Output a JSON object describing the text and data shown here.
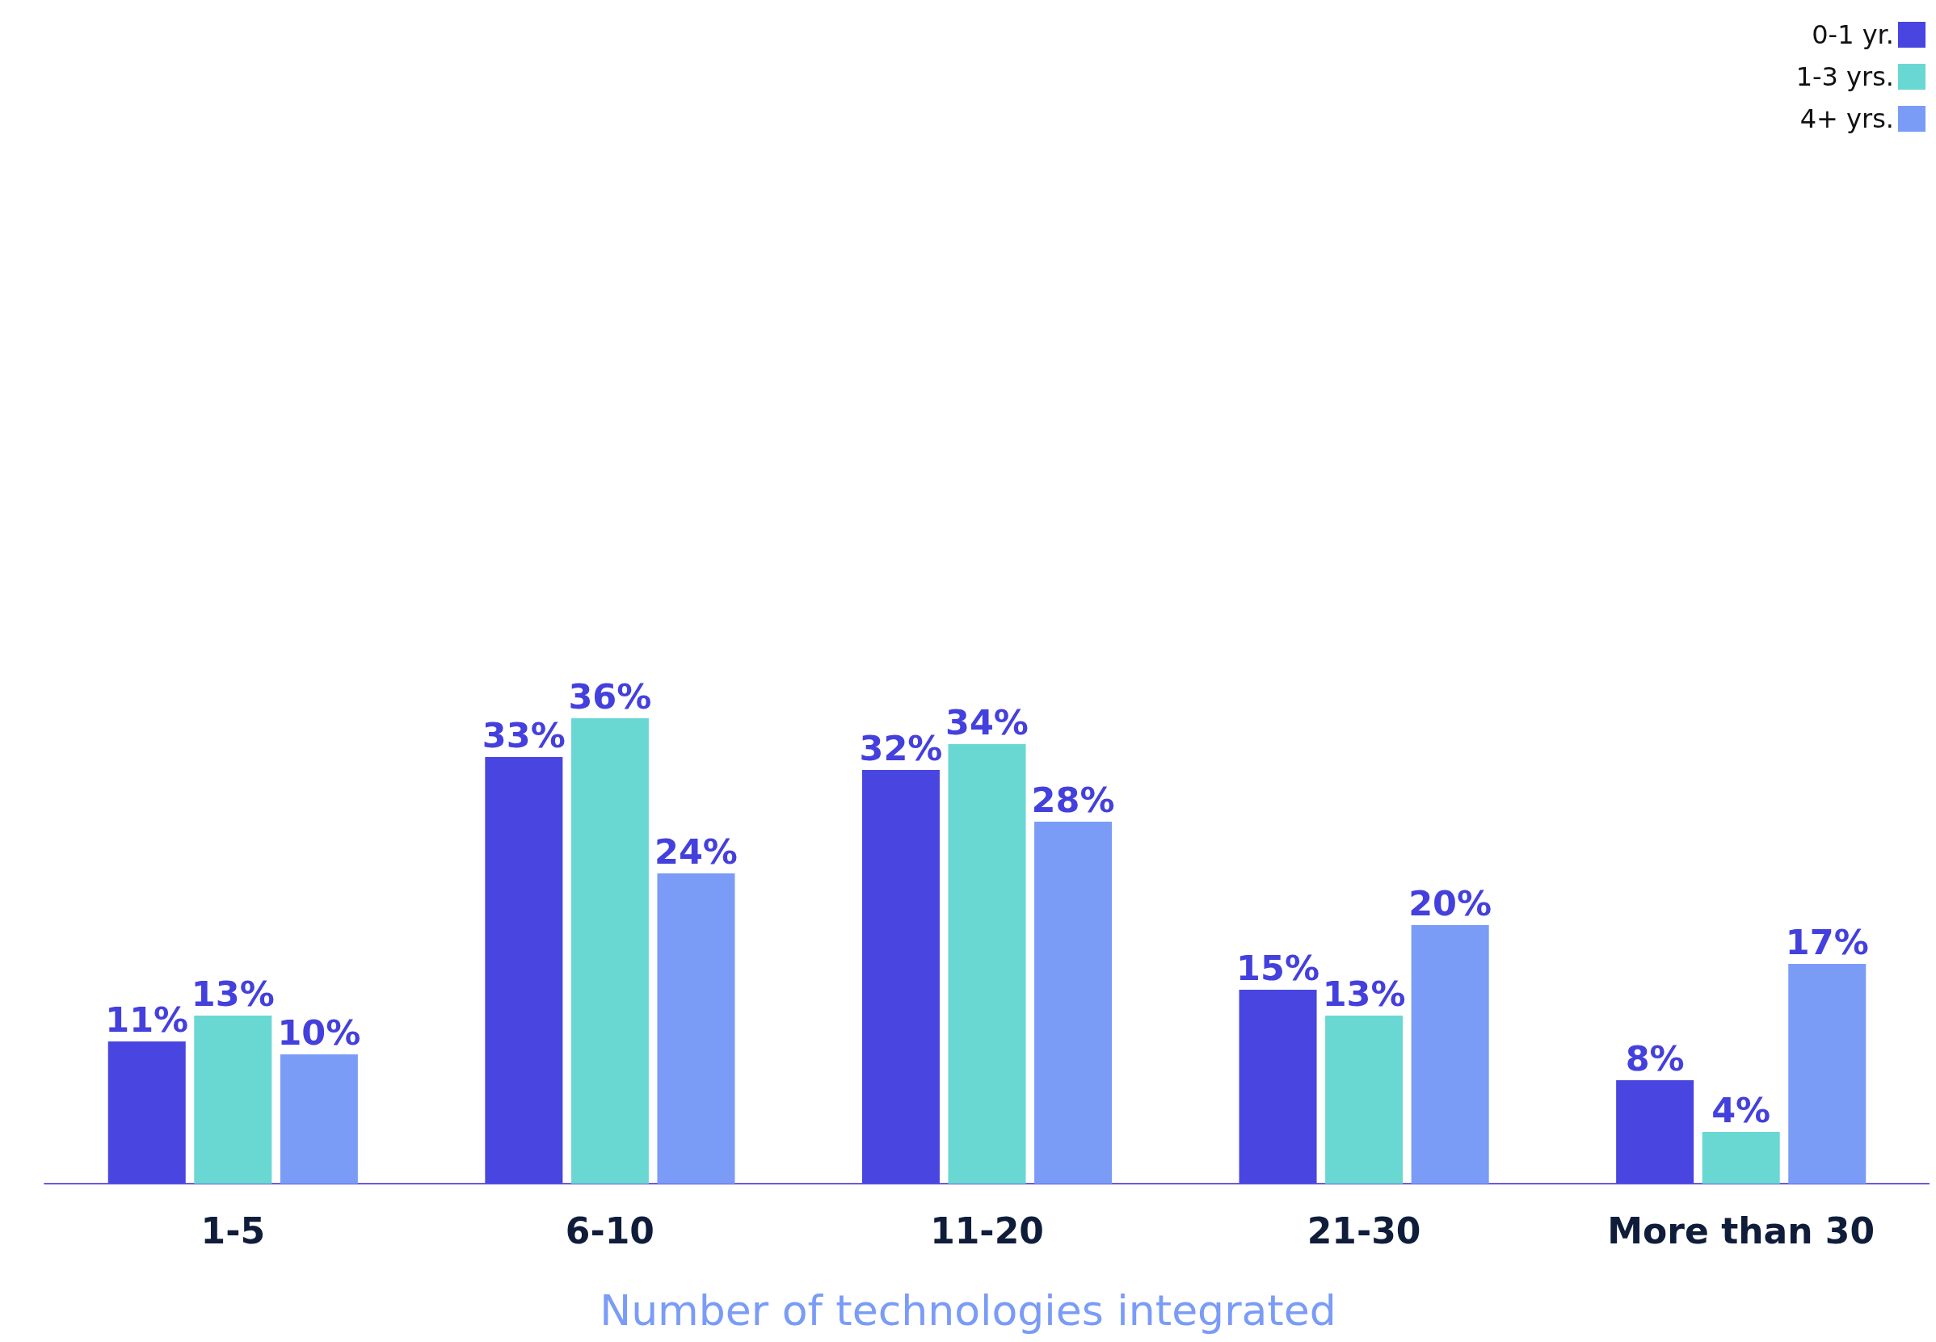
{
  "chart_data": {
    "type": "bar",
    "xlabel": "Number of technologies integrated",
    "categories": [
      "1-5",
      "6-10",
      "11-20",
      "21-30",
      "More than 30"
    ],
    "series": [
      {
        "name": "0-1 yr.",
        "color": "#4845e0",
        "values": [
          11,
          33,
          32,
          15,
          8
        ],
        "value_labels": [
          "11%",
          "33%",
          "32%",
          "15%",
          "8%"
        ]
      },
      {
        "name": "1-3 yrs.",
        "color": "#69d8d3",
        "values": [
          13,
          36,
          34,
          13,
          4
        ],
        "value_labels": [
          "13%",
          "36%",
          "34%",
          "13%",
          "4%"
        ]
      },
      {
        "name": "4+ yrs.",
        "color": "#7a9cf7",
        "values": [
          10,
          24,
          28,
          20,
          17
        ],
        "value_labels": [
          "10%",
          "24%",
          "28%",
          "20%",
          "17%"
        ]
      }
    ],
    "legend": "top right"
  }
}
